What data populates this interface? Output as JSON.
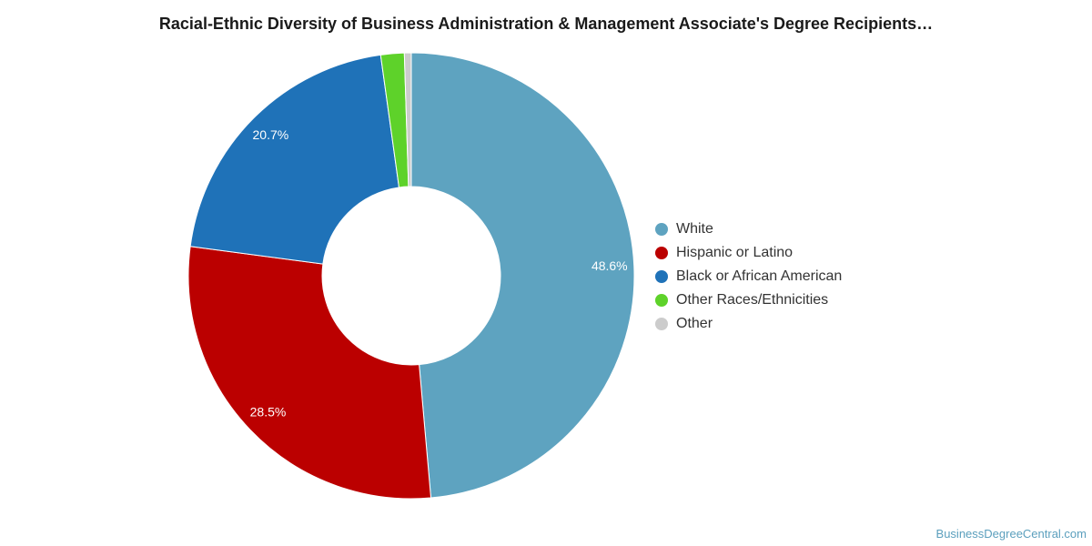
{
  "chart_data": {
    "type": "pie",
    "title": "Racial-Ethnic Diversity of Business Administration & Management Associate's Degree Recipients…",
    "categories": [
      "White",
      "Hispanic or Latino",
      "Black or African American",
      "Other Races/Ethnicities",
      "Other"
    ],
    "values": [
      48.6,
      28.5,
      20.7,
      1.7,
      0.5
    ],
    "data_labels": [
      "48.6%",
      "28.5%",
      "20.7%",
      "",
      ""
    ],
    "colors": [
      "#5ea3c0",
      "#bb0000",
      "#1f72b8",
      "#5ed22a",
      "#cccccc"
    ],
    "donut": true,
    "legend_position": "right"
  },
  "source": "BusinessDegreeCentral.com"
}
